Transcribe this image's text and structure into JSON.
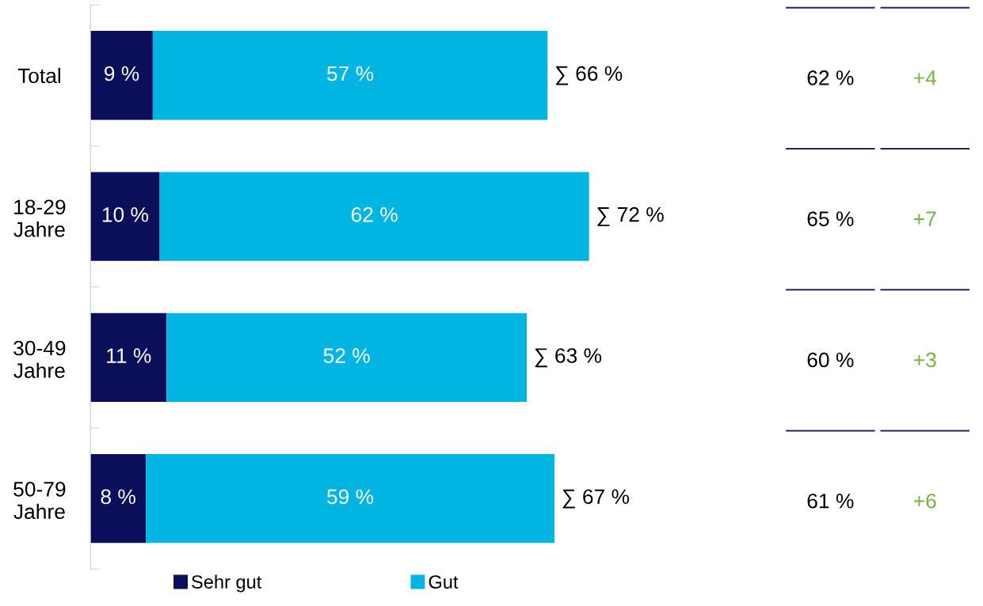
{
  "chart_data": {
    "type": "bar",
    "orientation": "horizontal",
    "stacked": true,
    "categories": [
      "Total",
      "18-29\nJahre",
      "30-49\nJahre",
      "50-79\nJahre"
    ],
    "series": [
      {
        "name": "Sehr gut",
        "color": "#0b0f5a",
        "values": [
          9,
          10,
          11,
          8
        ],
        "value_labels": [
          "9 %",
          "10 %",
          "11 %",
          "8 %"
        ]
      },
      {
        "name": "Gut",
        "color": "#00b5e2",
        "values": [
          57,
          62,
          52,
          59
        ],
        "value_labels": [
          "57 %",
          "62 %",
          "52 %",
          "59 %"
        ]
      }
    ],
    "totals": [
      "∑ 66 %",
      "∑ 72 %",
      "∑ 63 %",
      "∑ 67 %"
    ],
    "tick_labels": "y",
    "grid": false,
    "legend": "bottom left",
    "annotations": [
      "62 %",
      "+4",
      "65 %",
      "+7",
      "60 %",
      "+3",
      "61 %",
      "+6"
    ]
  }
}
